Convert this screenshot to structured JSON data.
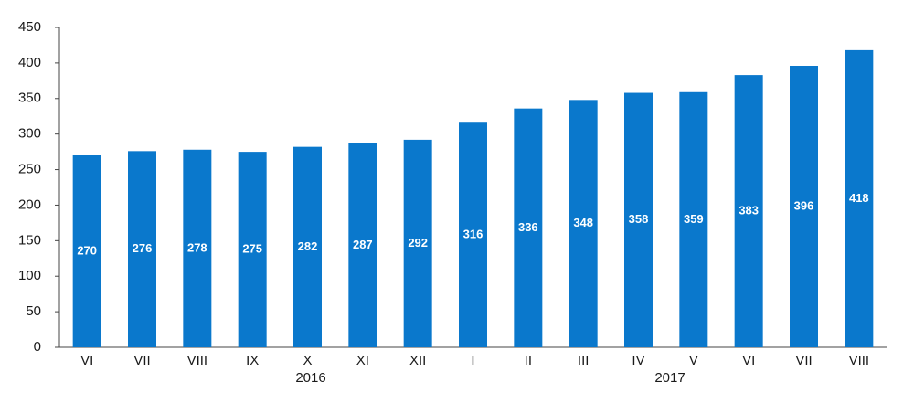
{
  "chart_data": {
    "type": "bar",
    "categories": [
      "VI",
      "VII",
      "VIII",
      "IX",
      "X",
      "XI",
      "XII",
      "I",
      "II",
      "III",
      "IV",
      "V",
      "VI",
      "VII",
      "VIII"
    ],
    "values": [
      270,
      276,
      278,
      275,
      282,
      287,
      292,
      316,
      336,
      348,
      358,
      359,
      383,
      396,
      418
    ],
    "group_labels": [
      "2016",
      "2017"
    ],
    "color": "#0a78cc",
    "ylim": [
      0,
      450
    ],
    "yticks": [
      0,
      50,
      100,
      150,
      200,
      250,
      300,
      350,
      400,
      450
    ],
    "grid": false
  }
}
